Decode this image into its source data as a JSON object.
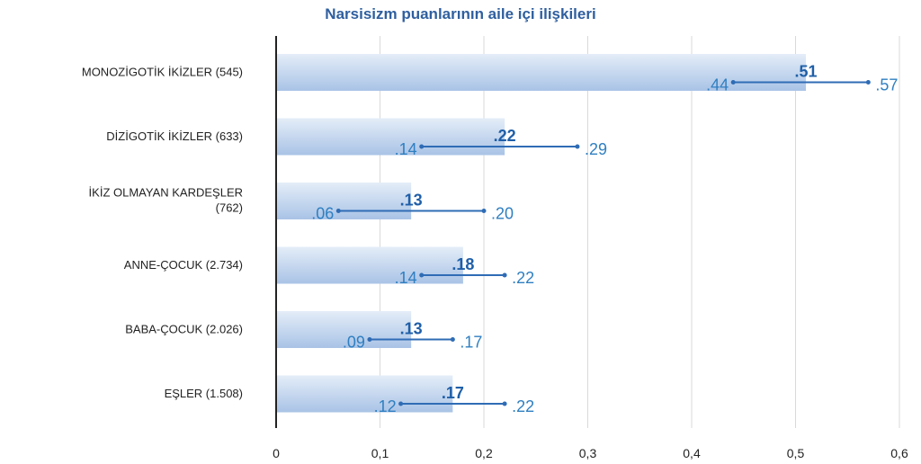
{
  "chart_data": {
    "type": "bar",
    "orientation": "horizontal",
    "title": "Narsisizm puanlarının aile içi ilişkileri",
    "categories": [
      [
        "MONOZİGOTİK İKİZLER (545)"
      ],
      [
        "DİZİGOTİK İKİZLER (633)"
      ],
      [
        "İKİZ OLMAYAN KARDEŞLER",
        "(762)"
      ],
      [
        "ANNE-ÇOCUK (2.734)"
      ],
      [
        "BABA-ÇOCUK (2.026)"
      ],
      [
        "EŞLER (1.508)"
      ]
    ],
    "values": [
      0.51,
      0.22,
      0.13,
      0.18,
      0.13,
      0.17
    ],
    "value_labels": [
      ".51",
      ".22",
      ".13",
      ".18",
      ".13",
      ".17"
    ],
    "ci_low": [
      0.44,
      0.14,
      0.06,
      0.14,
      0.09,
      0.12
    ],
    "ci_low_labels": [
      ".44",
      ".14",
      ".06",
      ".14",
      ".09",
      ".12"
    ],
    "ci_high": [
      0.57,
      0.29,
      0.2,
      0.22,
      0.17,
      0.22
    ],
    "ci_high_labels": [
      ".57",
      ".29",
      ".20",
      ".22",
      ".17",
      ".22"
    ],
    "xlim": [
      0,
      0.6
    ],
    "xticks": [
      0,
      0.1,
      0.2,
      0.3,
      0.4,
      0.5,
      0.6
    ],
    "xtick_labels": [
      "0",
      "0,1",
      "0,2",
      "0,3",
      "0,4",
      "0,5",
      "0,6"
    ],
    "grid": true,
    "colors": {
      "title": "#2f5f9f",
      "bar_top": "#e4edf8",
      "bar_bottom": "#a9c3e6",
      "errorbar": "#2f6cb5",
      "labels": "#2f7fc1",
      "category_text": "#222222",
      "axis": "#222222",
      "grid": "#d9d9d9"
    }
  }
}
